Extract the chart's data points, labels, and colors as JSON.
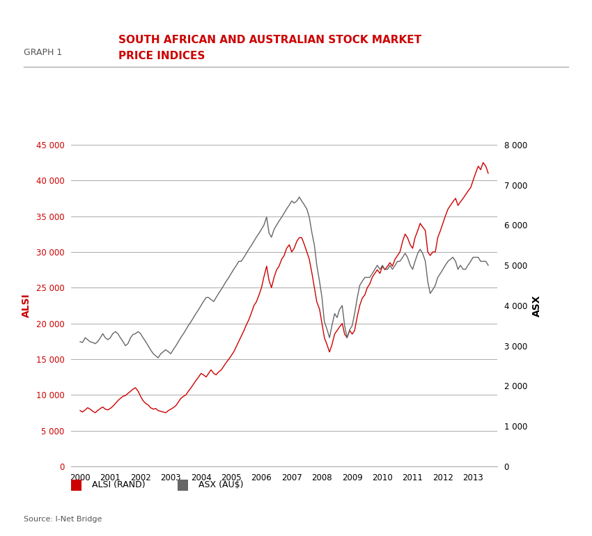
{
  "title_label": "GRAPH 1",
  "title_main": "SOUTH AFRICAN AND AUSTRALIAN STOCK MARKET\nPRICE INDICES",
  "source": "Source: I-Net Bridge",
  "ylabel_left": "ALSI",
  "ylabel_right": "ASX",
  "legend_entries": [
    "ALSI (RAND)",
    "ASX (AU$)"
  ],
  "alsi_color": "#cc0000",
  "asx_color": "#666666",
  "background_color": "#ffffff",
  "ylim_left": [
    0,
    45000
  ],
  "ylim_right": [
    0,
    8000
  ],
  "yticks_left": [
    0,
    5000,
    10000,
    15000,
    20000,
    25000,
    30000,
    35000,
    40000,
    45000
  ],
  "yticks_right": [
    0,
    1000,
    2000,
    3000,
    4000,
    5000,
    6000,
    7000,
    8000
  ],
  "years": [
    2000,
    2001,
    2002,
    2003,
    2004,
    2005,
    2006,
    2007,
    2008,
    2009,
    2010,
    2011,
    2012,
    2013
  ],
  "alsi_data": {
    "x": [
      2000.0,
      2000.08,
      2000.17,
      2000.25,
      2000.33,
      2000.42,
      2000.5,
      2000.58,
      2000.67,
      2000.75,
      2000.83,
      2000.92,
      2001.0,
      2001.08,
      2001.17,
      2001.25,
      2001.33,
      2001.42,
      2001.5,
      2001.58,
      2001.67,
      2001.75,
      2001.83,
      2001.92,
      2002.0,
      2002.08,
      2002.17,
      2002.25,
      2002.33,
      2002.42,
      2002.5,
      2002.58,
      2002.67,
      2002.75,
      2002.83,
      2002.92,
      2003.0,
      2003.08,
      2003.17,
      2003.25,
      2003.33,
      2003.42,
      2003.5,
      2003.58,
      2003.67,
      2003.75,
      2003.83,
      2003.92,
      2004.0,
      2004.08,
      2004.17,
      2004.25,
      2004.33,
      2004.42,
      2004.5,
      2004.58,
      2004.67,
      2004.75,
      2004.83,
      2004.92,
      2005.0,
      2005.08,
      2005.17,
      2005.25,
      2005.33,
      2005.42,
      2005.5,
      2005.58,
      2005.67,
      2005.75,
      2005.83,
      2005.92,
      2006.0,
      2006.08,
      2006.17,
      2006.25,
      2006.33,
      2006.42,
      2006.5,
      2006.58,
      2006.67,
      2006.75,
      2006.83,
      2006.92,
      2007.0,
      2007.08,
      2007.17,
      2007.25,
      2007.33,
      2007.42,
      2007.5,
      2007.58,
      2007.67,
      2007.75,
      2007.83,
      2007.92,
      2008.0,
      2008.08,
      2008.17,
      2008.25,
      2008.33,
      2008.42,
      2008.5,
      2008.58,
      2008.67,
      2008.75,
      2008.83,
      2008.92,
      2009.0,
      2009.08,
      2009.17,
      2009.25,
      2009.33,
      2009.42,
      2009.5,
      2009.58,
      2009.67,
      2009.75,
      2009.83,
      2009.92,
      2010.0,
      2010.08,
      2010.17,
      2010.25,
      2010.33,
      2010.42,
      2010.5,
      2010.58,
      2010.67,
      2010.75,
      2010.83,
      2010.92,
      2011.0,
      2011.08,
      2011.17,
      2011.25,
      2011.33,
      2011.42,
      2011.5,
      2011.58,
      2011.67,
      2011.75,
      2011.83,
      2011.92,
      2012.0,
      2012.08,
      2012.17,
      2012.25,
      2012.33,
      2012.42,
      2012.5,
      2012.58,
      2012.67,
      2012.75,
      2012.83,
      2012.92,
      2013.0,
      2013.08,
      2013.17,
      2013.25,
      2013.33,
      2013.42,
      2013.5
    ],
    "y": [
      7800,
      7600,
      7900,
      8200,
      8000,
      7700,
      7500,
      7800,
      8100,
      8300,
      8000,
      7900,
      8100,
      8400,
      8800,
      9200,
      9500,
      9800,
      9900,
      10200,
      10500,
      10800,
      11000,
      10500,
      9800,
      9200,
      8800,
      8600,
      8200,
      8000,
      8100,
      7800,
      7700,
      7600,
      7500,
      7800,
      8000,
      8200,
      8500,
      9000,
      9500,
      9800,
      10000,
      10500,
      11000,
      11500,
      12000,
      12500,
      13000,
      12800,
      12500,
      13000,
      13500,
      13000,
      12800,
      13200,
      13500,
      14000,
      14500,
      15000,
      15500,
      16000,
      16800,
      17500,
      18200,
      19000,
      19800,
      20500,
      21500,
      22500,
      23000,
      24000,
      25000,
      26500,
      28000,
      26000,
      25000,
      26500,
      27500,
      28000,
      29000,
      29500,
      30500,
      31000,
      30000,
      30500,
      31500,
      32000,
      32000,
      31000,
      30000,
      29000,
      27000,
      25000,
      23000,
      22000,
      20000,
      18000,
      17000,
      16000,
      17000,
      18500,
      19000,
      19500,
      20000,
      18500,
      18000,
      19000,
      18500,
      19000,
      21000,
      22500,
      23500,
      24000,
      25000,
      25500,
      26500,
      27000,
      27500,
      27000,
      28000,
      27500,
      28000,
      28500,
      28000,
      29000,
      29500,
      30000,
      31500,
      32500,
      32000,
      31000,
      30500,
      32000,
      33000,
      34000,
      33500,
      33000,
      30000,
      29500,
      30000,
      30000,
      32000,
      33000,
      34000,
      35000,
      36000,
      36500,
      37000,
      37500,
      36500,
      37000,
      37500,
      38000,
      38500,
      39000,
      40000,
      41000,
      42000,
      41500,
      42500,
      42000,
      41000
    ]
  },
  "asx_data": {
    "x": [
      2000.0,
      2000.08,
      2000.17,
      2000.25,
      2000.33,
      2000.42,
      2000.5,
      2000.58,
      2000.67,
      2000.75,
      2000.83,
      2000.92,
      2001.0,
      2001.08,
      2001.17,
      2001.25,
      2001.33,
      2001.42,
      2001.5,
      2001.58,
      2001.67,
      2001.75,
      2001.83,
      2001.92,
      2002.0,
      2002.08,
      2002.17,
      2002.25,
      2002.33,
      2002.42,
      2002.5,
      2002.58,
      2002.67,
      2002.75,
      2002.83,
      2002.92,
      2003.0,
      2003.08,
      2003.17,
      2003.25,
      2003.33,
      2003.42,
      2003.5,
      2003.58,
      2003.67,
      2003.75,
      2003.83,
      2003.92,
      2004.0,
      2004.08,
      2004.17,
      2004.25,
      2004.33,
      2004.42,
      2004.5,
      2004.58,
      2004.67,
      2004.75,
      2004.83,
      2004.92,
      2005.0,
      2005.08,
      2005.17,
      2005.25,
      2005.33,
      2005.42,
      2005.5,
      2005.58,
      2005.67,
      2005.75,
      2005.83,
      2005.92,
      2006.0,
      2006.08,
      2006.17,
      2006.25,
      2006.33,
      2006.42,
      2006.5,
      2006.58,
      2006.67,
      2006.75,
      2006.83,
      2006.92,
      2007.0,
      2007.08,
      2007.17,
      2007.25,
      2007.33,
      2007.42,
      2007.5,
      2007.58,
      2007.67,
      2007.75,
      2007.83,
      2007.92,
      2008.0,
      2008.08,
      2008.17,
      2008.25,
      2008.33,
      2008.42,
      2008.5,
      2008.58,
      2008.67,
      2008.75,
      2008.83,
      2008.92,
      2009.0,
      2009.08,
      2009.17,
      2009.25,
      2009.33,
      2009.42,
      2009.5,
      2009.58,
      2009.67,
      2009.75,
      2009.83,
      2009.92,
      2010.0,
      2010.08,
      2010.17,
      2010.25,
      2010.33,
      2010.42,
      2010.5,
      2010.58,
      2010.67,
      2010.75,
      2010.83,
      2010.92,
      2011.0,
      2011.08,
      2011.17,
      2011.25,
      2011.33,
      2011.42,
      2011.5,
      2011.58,
      2011.67,
      2011.75,
      2011.83,
      2011.92,
      2012.0,
      2012.08,
      2012.17,
      2012.25,
      2012.33,
      2012.42,
      2012.5,
      2012.58,
      2012.67,
      2012.75,
      2012.83,
      2012.92,
      2013.0,
      2013.08,
      2013.17,
      2013.25,
      2013.33,
      2013.42,
      2013.5
    ],
    "y": [
      3100,
      3080,
      3200,
      3150,
      3100,
      3080,
      3050,
      3100,
      3200,
      3300,
      3200,
      3150,
      3200,
      3300,
      3350,
      3300,
      3200,
      3100,
      3000,
      3050,
      3200,
      3280,
      3300,
      3350,
      3300,
      3200,
      3100,
      3000,
      2900,
      2800,
      2750,
      2700,
      2800,
      2850,
      2900,
      2850,
      2800,
      2900,
      3000,
      3100,
      3200,
      3300,
      3400,
      3500,
      3600,
      3700,
      3800,
      3900,
      4000,
      4100,
      4200,
      4200,
      4150,
      4100,
      4200,
      4300,
      4400,
      4500,
      4600,
      4700,
      4800,
      4900,
      5000,
      5100,
      5100,
      5200,
      5300,
      5400,
      5500,
      5600,
      5700,
      5800,
      5900,
      6000,
      6200,
      5800,
      5700,
      5900,
      6000,
      6100,
      6200,
      6300,
      6400,
      6500,
      6600,
      6550,
      6600,
      6700,
      6600,
      6500,
      6400,
      6200,
      5800,
      5500,
      5000,
      4600,
      4200,
      3600,
      3400,
      3200,
      3500,
      3800,
      3700,
      3900,
      4000,
      3500,
      3200,
      3400,
      3500,
      3800,
      4200,
      4500,
      4600,
      4700,
      4700,
      4700,
      4800,
      4900,
      5000,
      4900,
      5000,
      4900,
      4900,
      5000,
      4900,
      5000,
      5100,
      5100,
      5200,
      5300,
      5200,
      5000,
      4900,
      5100,
      5300,
      5400,
      5300,
      5100,
      4600,
      4300,
      4400,
      4500,
      4700,
      4800,
      4900,
      5000,
      5100,
      5150,
      5200,
      5100,
      4900,
      5000,
      4900,
      4900,
      5000,
      5100,
      5200,
      5200,
      5200,
      5100,
      5100,
      5100,
      5000
    ]
  }
}
